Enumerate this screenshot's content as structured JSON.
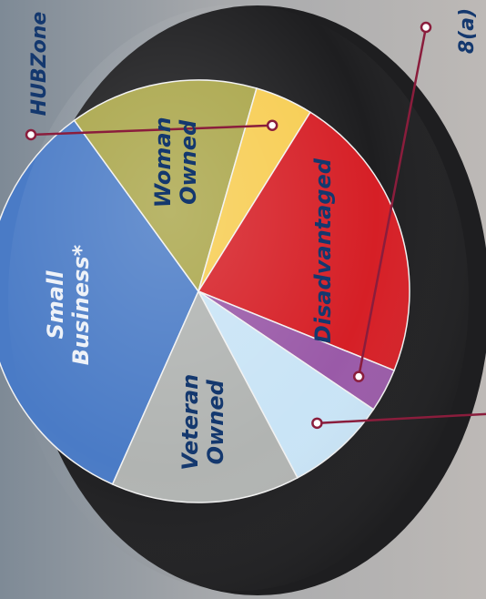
{
  "chart_data": {
    "type": "pie",
    "title": "",
    "slices": [
      {
        "name": "Small Business*",
        "value": 30,
        "color": "#4a7bc6",
        "text_color": "#eef2f8",
        "label_lines": [
          "Small",
          "Business*"
        ]
      },
      {
        "name": "Woman Owned",
        "value": 13,
        "color": "#aaa64a",
        "text_color": "#14386e",
        "label_lines": [
          "Woman",
          "Owned"
        ]
      },
      {
        "name": "HUBZone",
        "value": 4,
        "color": "#f7cd52",
        "text_color": "#14386e",
        "label_lines": []
      },
      {
        "name": "Disadvantaged",
        "value": 20,
        "color": "#d61f26",
        "text_color": "#14386e",
        "label_lines": [
          "Disadvantaged"
        ]
      },
      {
        "name": "8(a)",
        "value": 3,
        "color": "#9a5aa8",
        "text_color": "#14386e",
        "label_lines": []
      },
      {
        "name": "",
        "value": 7,
        "color": "#c9e4f6",
        "text_color": "#14386e",
        "label_lines": []
      },
      {
        "name": "Veteran Owned",
        "value": 13,
        "color": "#b1b4b2",
        "text_color": "#14386e",
        "label_lines": [
          "Veteran",
          "Owned"
        ]
      }
    ],
    "callouts": [
      {
        "slice": "HUBZone",
        "text": "HUBZone"
      },
      {
        "slice": "8(a)",
        "text": "8(a)"
      }
    ],
    "callout_color": "#8a1d3c"
  }
}
